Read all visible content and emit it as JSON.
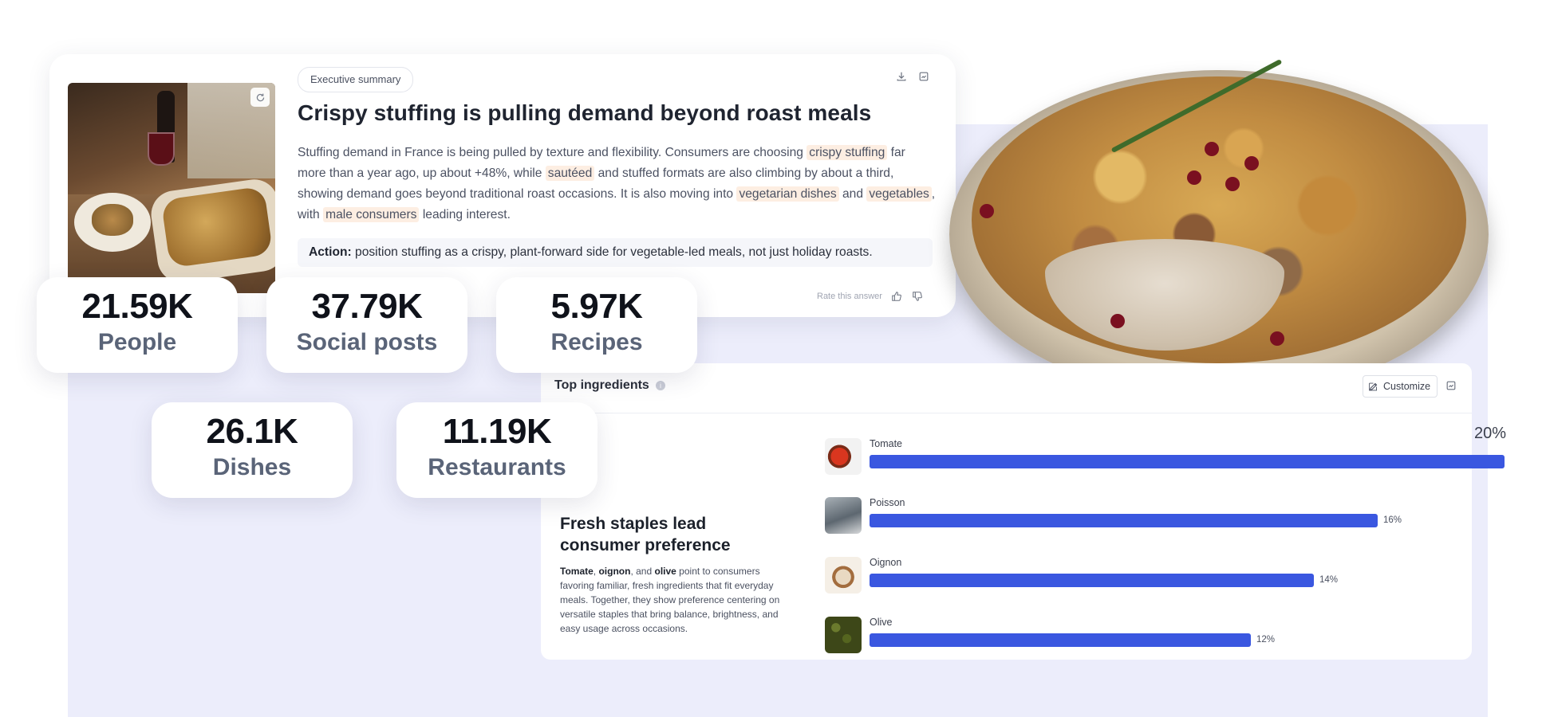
{
  "exec_summary": {
    "tag": "Executive summary",
    "title": "Crispy stuffing is pulling demand beyond roast meals",
    "body": {
      "p1": "Stuffing demand in France is being pulled by texture and flexibility. Consumers are choosing ",
      "h1": "crispy stuffing",
      "p2": " far more than a year ago, up about +48%, while ",
      "h2": "sautéed",
      "p3": " and stuffed formats are also climbing by about a third, showing demand goes beyond traditional roast occasions. It is also moving into ",
      "h3": "vegetarian dishes",
      "p4": " and ",
      "h4": "vegetables",
      "p5": ", with ",
      "h5": "male consumers",
      "p6": " leading interest."
    },
    "action_label": "Action:",
    "action_text": " position stuffing as a crispy, plant-forward side for vegetable-led meals, not just holiday roasts.",
    "rate_label": "Rate this answer"
  },
  "stats": [
    {
      "value": "21.59K",
      "label": "People"
    },
    {
      "value": "37.79K",
      "label": "Social posts"
    },
    {
      "value": "5.97K",
      "label": "Recipes"
    },
    {
      "value": "26.1K",
      "label": "Dishes"
    },
    {
      "value": "11.19K",
      "label": "Restaurants"
    }
  ],
  "ingredients": {
    "title": "Top ingredients",
    "customize_label": "Customize",
    "subtitle": "Fresh staples lead consumer preference",
    "desc": {
      "b1": "Tomate",
      "t1": ", ",
      "b2": "oignon",
      "t2": ", and ",
      "b3": "olive",
      "t3": " point to consumers favoring familiar, fresh ingredients that fit everyday meals. Together, they show preference centering on versatile staples that bring balance, brightness, and easy usage across occasions."
    }
  },
  "chart_data": {
    "type": "bar",
    "categories": [
      "Tomate",
      "Poisson",
      "Oignon",
      "Olive"
    ],
    "values": [
      20,
      16,
      14,
      12
    ],
    "value_labels": [
      "20%",
      "16%",
      "14%",
      "12%"
    ],
    "orientation": "horizontal",
    "colors": {
      "bar": "#3a57e0"
    }
  },
  "icons": [
    "refresh-icon",
    "download-icon",
    "export-icon",
    "thumbs-up-icon",
    "thumbs-down-icon",
    "info-icon",
    "edit-icon"
  ]
}
